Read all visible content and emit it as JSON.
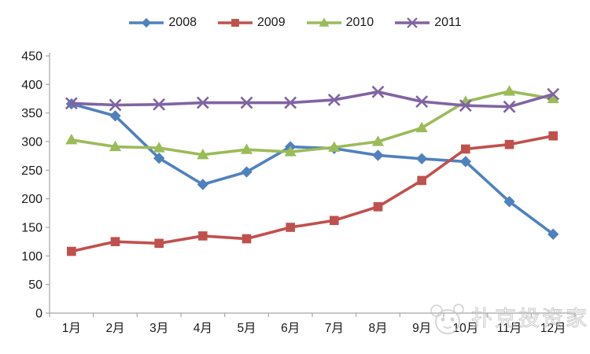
{
  "watermark": {
    "text": "扑克投资家",
    "logo": "panda-face-icon"
  },
  "chart_data": {
    "type": "line",
    "title": "",
    "xlabel": "",
    "ylabel": "",
    "categories": [
      "1月",
      "2月",
      "3月",
      "4月",
      "5月",
      "6月",
      "7月",
      "8月",
      "9月",
      "10月",
      "11月",
      "12月"
    ],
    "series": [
      {
        "name": "2008",
        "color": "#4F81BD",
        "marker": "diamond",
        "values": [
          366,
          345,
          271,
          225,
          247,
          291,
          288,
          276,
          270,
          265,
          195,
          138
        ]
      },
      {
        "name": "2009",
        "color": "#C0504D",
        "marker": "square",
        "values": [
          108,
          125,
          122,
          135,
          130,
          150,
          162,
          186,
          232,
          287,
          295,
          310
        ]
      },
      {
        "name": "2010",
        "color": "#9BBB59",
        "marker": "triangle",
        "values": [
          303,
          291,
          289,
          277,
          286,
          282,
          290,
          300,
          324,
          370,
          388,
          375
        ]
      },
      {
        "name": "2011",
        "color": "#8064A2",
        "marker": "x",
        "values": [
          367,
          364,
          365,
          368,
          368,
          368,
          373,
          387,
          370,
          363,
          361,
          383
        ]
      }
    ],
    "ylim": [
      0,
      450
    ],
    "ytick_step": 50,
    "yticks": [
      0,
      50,
      100,
      150,
      200,
      250,
      300,
      350,
      400,
      450
    ],
    "grid": false,
    "legend_position": "top",
    "axis_color": "#A6A6A6",
    "tick_label_color": "#1a1a1a"
  }
}
